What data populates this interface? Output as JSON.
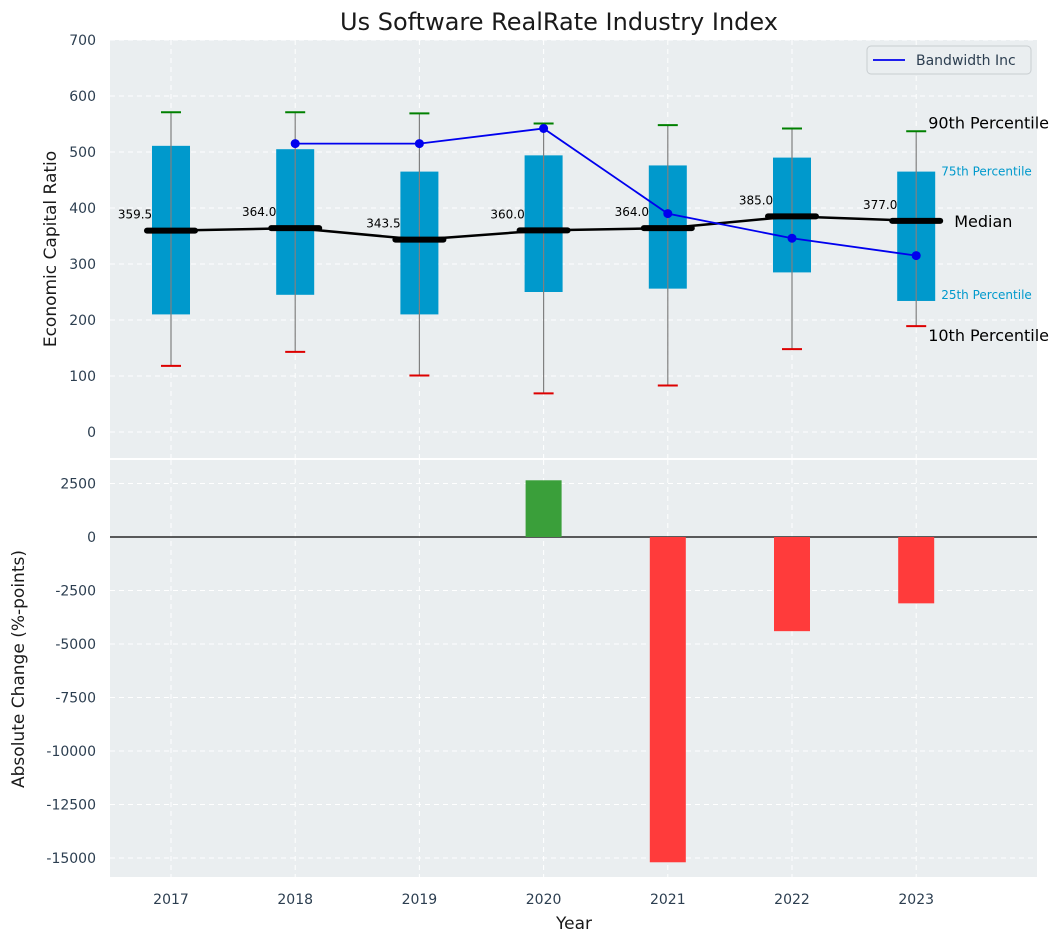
{
  "chart_data": [
    {
      "type": "box",
      "title": "Us Software RealRate Industry Index",
      "ylabel": "Economic Capital Ratio",
      "ylim": [
        -50,
        700
      ],
      "yticks": [
        0,
        100,
        200,
        300,
        400,
        500,
        600,
        700
      ],
      "categories": [
        "2017",
        "2018",
        "2019",
        "2020",
        "2021",
        "2022",
        "2023"
      ],
      "boxes": [
        {
          "p10": 118,
          "p25": 210,
          "median": 359.5,
          "p75": 511,
          "p90": 571
        },
        {
          "p10": 143,
          "p25": 245,
          "median": 364.0,
          "p75": 505,
          "p90": 571
        },
        {
          "p10": 101,
          "p25": 210,
          "median": 343.5,
          "p75": 465,
          "p90": 569
        },
        {
          "p10": 69,
          "p25": 250,
          "median": 360.0,
          "p75": 494,
          "p90": 551
        },
        {
          "p10": 83,
          "p25": 256,
          "median": 364.0,
          "p75": 476,
          "p90": 548
        },
        {
          "p10": 148,
          "p25": 285,
          "median": 385.0,
          "p75": 490,
          "p90": 542
        },
        {
          "p10": 189,
          "p25": 234,
          "median": 377.0,
          "p75": 465,
          "p90": 537
        }
      ],
      "median_labels": [
        "359.5",
        "364.0",
        "343.5",
        "360.0",
        "364.0",
        "385.0",
        "377.0"
      ],
      "series": [
        {
          "name": "Bandwidth Inc",
          "values": [
            null,
            515,
            515,
            542,
            390,
            346,
            315
          ]
        }
      ],
      "legend": {
        "placement": "top-right"
      },
      "annotations": {
        "p90": "90th Percentile",
        "p75": "75th Percentile",
        "median": "Median",
        "p25": "25th Percentile",
        "p10": "10th Percentile"
      },
      "grid": true
    },
    {
      "type": "bar",
      "xlabel": "Year",
      "ylabel": "Absolute Change (%-points)",
      "ylim": [
        -16000,
        3500
      ],
      "yticks": [
        2500,
        0,
        -2500,
        -5000,
        -7500,
        -10000,
        -12500,
        -15000
      ],
      "categories": [
        "2017",
        "2018",
        "2019",
        "2020",
        "2021",
        "2022",
        "2023"
      ],
      "values": [
        null,
        null,
        null,
        2650,
        -15200,
        -4400,
        -3100
      ],
      "grid": true
    }
  ],
  "colors": {
    "background": "#eaeef0",
    "box": "#0099cc",
    "median": "#000000",
    "series": "#0000ee",
    "p90_cap": "#008000",
    "p10_cap": "#dd0000",
    "positive": "#3a9f3a",
    "negative": "#ff3b3b",
    "tick_text": "#2c3e50"
  }
}
